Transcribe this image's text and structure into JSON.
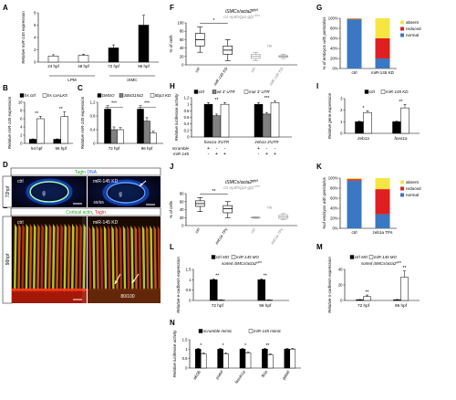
{
  "figure": {
    "panel_letters": [
      "A",
      "B",
      "C",
      "D",
      "E",
      "F",
      "G",
      "H",
      "I",
      "J",
      "K",
      "L",
      "M",
      "N"
    ]
  },
  "chart_data": [
    {
      "panel": "A",
      "type": "bar",
      "categories": [
        "24 hpf",
        "48 hpf",
        "72 hpf",
        "96 hpf"
      ],
      "groups": [
        {
          "label": "LPM",
          "members": [
            "24 hpf",
            "48 hpf"
          ]
        },
        {
          "label": "iSMC",
          "members": [
            "72 hpf",
            "96 hpf"
          ]
        }
      ],
      "values": [
        1.0,
        1.1,
        2.3,
        6.0
      ],
      "errors": [
        0.2,
        0.2,
        0.5,
        1.6
      ],
      "ylabel": "Relative miR-145 expression",
      "yticks": [
        0,
        2,
        4,
        6,
        8
      ],
      "ylim": [
        0,
        8
      ],
      "colors": [
        "#ffffff",
        "#ffffff",
        "#000000",
        "#000000"
      ]
    },
    {
      "panel": "B",
      "type": "bar",
      "categories": [
        "54 hpf",
        "98 hpf"
      ],
      "series": [
        {
          "name": "hs ctrl",
          "color": "#000000",
          "values": [
            1.0,
            1.0
          ],
          "errors": [
            0.1,
            0.1
          ]
        },
        {
          "name": "hs caALK5",
          "color": "#ffffff",
          "values": [
            6.0,
            6.5
          ],
          "errors": [
            0.6,
            1.2
          ]
        }
      ],
      "significance": [
        "**",
        "**"
      ],
      "ylabel": "Relative miR-145 expression",
      "yticks": [
        0,
        2,
        4,
        6,
        8,
        10
      ],
      "ylim": [
        0,
        10
      ]
    },
    {
      "panel": "C",
      "type": "bar",
      "categories": [
        "72 hpf",
        "96 hpf"
      ],
      "series": [
        {
          "name": "DMSO",
          "color": "#000000",
          "values": [
            1.0,
            1.0
          ],
          "errors": [
            0.1,
            0.1
          ]
        },
        {
          "name": "SB431542",
          "color": "#808080",
          "values": [
            0.4,
            0.65
          ],
          "errors": [
            0.08,
            0.1
          ]
        },
        {
          "name": "ltbp3 KD",
          "color": "#ffffff",
          "values": [
            0.4,
            0.3
          ],
          "errors": [
            0.06,
            0.06
          ]
        }
      ],
      "significance": [
        "***",
        "***"
      ],
      "ylabel": "Relative miR-145 expression",
      "yticks": [
        0,
        0.4,
        0.8,
        1.2
      ],
      "ylim": [
        0,
        1.2
      ]
    },
    {
      "panel": "F",
      "type": "box",
      "title": "iSMCs/acta2",
      "title_sup": "gfp5",
      "subtitle": "GI epith/gut-gfp",
      "subtitle_sup": "s854",
      "categories": [
        "ctrl",
        "miR-145 KD",
        "ctrl",
        "miR-145 KD"
      ],
      "boxes": [
        {
          "min": 30,
          "q1": 45,
          "median": 60,
          "q3": 75,
          "max": 90
        },
        {
          "min": 10,
          "q1": 25,
          "median": 35,
          "q3": 45,
          "max": 60
        },
        {
          "min": 10,
          "q1": 15,
          "median": 20,
          "q3": 25,
          "max": 30
        },
        {
          "min": 15,
          "q1": 18,
          "median": 20,
          "q3": 22,
          "max": 25
        }
      ],
      "faded": [
        false,
        false,
        true,
        true
      ],
      "significance": [
        "*",
        "ns"
      ],
      "ylabel": "% of cells",
      "yticks": [
        0,
        20,
        40,
        60,
        80,
        100
      ],
      "ylim": [
        0,
        100
      ]
    },
    {
      "panel": "G",
      "type": "bar",
      "stacked": true,
      "categories": [
        "ctrl",
        "miR-145 KD"
      ],
      "series": [
        {
          "name": "normal",
          "color": "#3a78c2",
          "values": [
            98,
            20
          ]
        },
        {
          "name": "reduced",
          "color": "#e02020",
          "values": [
            1,
            40
          ]
        },
        {
          "name": "absent",
          "color": "#f5e642",
          "values": [
            1,
            40
          ]
        }
      ],
      "ylabel": "% of embryos with peristalsis",
      "yticks": [
        "0%",
        "20%",
        "40%",
        "60%",
        "80%",
        "100%"
      ],
      "ylim": [
        0,
        100
      ]
    },
    {
      "panel": "H",
      "type": "bar",
      "categories": [
        "foxo1a 3'UTR",
        "zeb1a 3'UTR"
      ],
      "series": [
        {
          "name": "ctrl",
          "color": "#000000",
          "values": [
            1.0,
            1.0
          ],
          "errors": [
            0.05,
            0.05
          ]
        },
        {
          "name": "wt 3' UTR",
          "color": "#808080",
          "values": [
            0.65,
            0.7
          ],
          "errors": [
            0.05,
            0.05
          ]
        },
        {
          "name": "mut 3' UTR",
          "color": "#ffffff",
          "values": [
            1.0,
            1.05
          ],
          "errors": [
            0.05,
            0.05
          ]
        }
      ],
      "significance": [
        "**",
        "***"
      ],
      "ylabel": "Relative luciferase activity",
      "yticks": [
        0,
        0.2,
        0.4,
        0.6,
        0.8,
        1,
        1.2
      ],
      "ylim": [
        0,
        1.2
      ],
      "rows": [
        {
          "label": "scramble",
          "values": [
            "+",
            "-",
            "-",
            "+",
            "-",
            "-"
          ]
        },
        {
          "label": "miR-145",
          "values": [
            "-",
            "+",
            "+",
            "-",
            "+",
            "+"
          ]
        }
      ]
    },
    {
      "panel": "I",
      "type": "bar",
      "categories": [
        "zeb1a",
        "foxo1a"
      ],
      "series": [
        {
          "name": "ctrl",
          "color": "#000000",
          "values": [
            1.0,
            1.0
          ],
          "errors": [
            0.05,
            0.05
          ]
        },
        {
          "name": "miR-145 KD",
          "color": "#ffffff",
          "values": [
            1.8,
            2.2
          ],
          "errors": [
            0.15,
            0.3
          ]
        }
      ],
      "significance": [
        "*",
        "**"
      ],
      "ylabel": "Relative gene expression",
      "yticks": [
        0,
        1,
        2,
        3
      ],
      "ylim": [
        0,
        3
      ]
    },
    {
      "panel": "J",
      "type": "box",
      "title": "iSMCs/acta2",
      "title_sup": "gfp5",
      "subtitle": "GI epith/gut-gfp",
      "subtitle_sup": "s854",
      "categories": [
        "ctrl",
        "zeb1a TPs",
        "ctrl",
        "zeb1a TPs"
      ],
      "boxes": [
        {
          "min": 35,
          "q1": 48,
          "median": 55,
          "q3": 62,
          "max": 70
        },
        {
          "min": 20,
          "q1": 32,
          "median": 42,
          "q3": 50,
          "max": 60
        },
        {
          "min": 18,
          "q1": 19,
          "median": 20,
          "q3": 21,
          "max": 22
        },
        {
          "min": 15,
          "q1": 18,
          "median": 22,
          "q3": 26,
          "max": 30
        }
      ],
      "faded": [
        false,
        false,
        true,
        true
      ],
      "significance": [
        "**",
        "ns"
      ],
      "ylabel": "% of cells",
      "yticks": [
        0,
        20,
        40,
        60,
        80
      ],
      "ylim": [
        0,
        80
      ]
    },
    {
      "panel": "K",
      "type": "bar",
      "stacked": true,
      "categories": [
        "ctrl",
        "zeb1a TPs"
      ],
      "series": [
        {
          "name": "normal",
          "color": "#3a78c2",
          "values": [
            95,
            28
          ]
        },
        {
          "name": "reduced",
          "color": "#e02020",
          "values": [
            3,
            50
          ]
        },
        {
          "name": "absent",
          "color": "#f5e642",
          "values": [
            2,
            22
          ]
        }
      ],
      "ylabel": "%of embryos with peristalsis",
      "yticks": [
        "0%",
        "20%",
        "40%",
        "60%",
        "80%",
        "100%"
      ],
      "ylim": [
        0,
        100
      ]
    },
    {
      "panel": "L",
      "type": "bar",
      "categories": [
        "72 hpf",
        "96 hpf"
      ],
      "series": [
        {
          "name": "ctrl MO",
          "color": "#000000",
          "values": [
            1.0,
            1.0
          ],
          "errors": [
            0.05,
            0.05
          ]
        },
        {
          "name": "miR-145 MO",
          "color": "#ffffff",
          "values": [
            0.02,
            0.02
          ],
          "errors": [
            0.01,
            0.01
          ]
        }
      ],
      "legend_caption": "sorted iSMCs/acta2",
      "legend_caption_sup": "gfp5",
      "significance": [
        "**",
        "**"
      ],
      "ylabel": "Relative e-cadherin expression",
      "yticks": [
        0,
        0.5,
        1,
        1.5
      ],
      "ylim": [
        0,
        1.5
      ]
    },
    {
      "panel": "M",
      "type": "bar",
      "categories": [
        "72 hpf",
        "96 hpf"
      ],
      "series": [
        {
          "name": "ctrl MO",
          "color": "#000000",
          "values": [
            1.0,
            1.0
          ],
          "errors": [
            0.2,
            0.2
          ]
        },
        {
          "name": "miR-145 MO",
          "color": "#ffffff",
          "values": [
            5.0,
            30.0
          ],
          "errors": [
            2.0,
            8.0
          ]
        }
      ],
      "legend_caption": "sorted iSMCs/acta2",
      "legend_caption_sup": "gfp5",
      "significance": [
        "**",
        "**"
      ],
      "ylabel": "Relative n-cadherin expression",
      "yticks": [
        0,
        20,
        40
      ],
      "ylim": [
        0,
        40
      ]
    },
    {
      "panel": "N",
      "type": "bar",
      "categories": [
        "akt3b",
        "podxl",
        "fascin1a",
        "fli1a",
        "gata6"
      ],
      "series": [
        {
          "name": "scramble mimic",
          "color": "#000000",
          "values": [
            1.0,
            1.0,
            1.0,
            1.0,
            1.0
          ],
          "errors": [
            0.05,
            0.05,
            0.05,
            0.05,
            0.05
          ]
        },
        {
          "name": "miR-145 mimic",
          "color": "#ffffff",
          "values": [
            0.75,
            0.75,
            0.8,
            0.7,
            1.0
          ],
          "errors": [
            0.05,
            0.05,
            0.05,
            0.05,
            0.05
          ]
        }
      ],
      "significance": [
        "*",
        "*",
        "*",
        "**",
        ""
      ],
      "ylabel": "Relative luciferase activity",
      "yticks": [
        0,
        0.5,
        1,
        1.5
      ],
      "ylim": [
        0,
        1.5
      ]
    }
  ],
  "images": {
    "D": {
      "header_parts": [
        {
          "text": "Tagln",
          "color": "#22aa22"
        },
        {
          "text": " DNA",
          "color": "#2255ff"
        }
      ],
      "side_label": "72hpf",
      "left": {
        "label": "ctrl",
        "inner": "g"
      },
      "right": {
        "label": "miR-145 KD",
        "inner": "g",
        "count": "40/55"
      }
    },
    "E": {
      "header_parts": [
        {
          "text": "Cortical actin",
          "color": "#22aa22"
        },
        {
          "text": ", ",
          "color": "#000000"
        },
        {
          "text": "Tagln",
          "color": "#e02020"
        }
      ],
      "side_label": "96hpf",
      "left": {
        "label": "ctrl"
      },
      "right": {
        "label": "miR-145 KD",
        "count": "80/100"
      }
    }
  }
}
